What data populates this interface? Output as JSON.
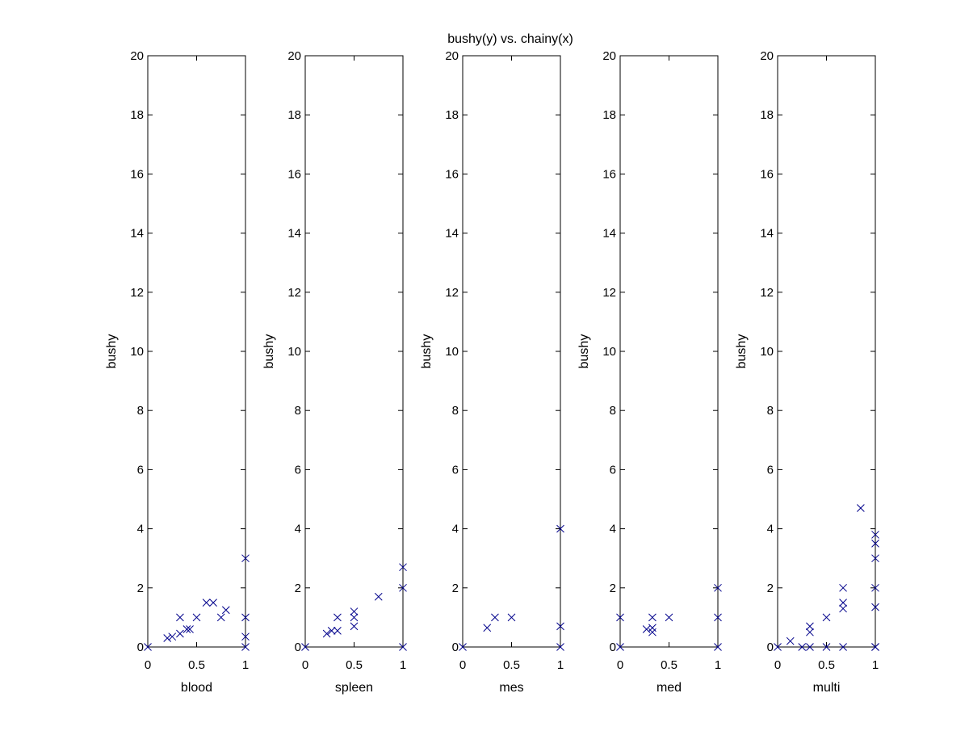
{
  "figure": {
    "title": "bushy(y) vs. chainy(x)",
    "background": "#ffffff",
    "marker_color": "#00008b"
  },
  "chart_data": [
    {
      "type": "scatter",
      "xlabel": "blood",
      "ylabel": "bushy",
      "xlim": [
        0,
        1
      ],
      "ylim": [
        0,
        20
      ],
      "xticks": [
        "0",
        "0.5",
        "1"
      ],
      "yticks": [
        "0",
        "2",
        "4",
        "6",
        "8",
        "10",
        "12",
        "14",
        "16",
        "18",
        "20"
      ],
      "marker": "x",
      "x": [
        0,
        0.2,
        0.25,
        0.33,
        0.33,
        0.4,
        0.43,
        0.5,
        0.6,
        0.67,
        0.75,
        0.8,
        1,
        1,
        1,
        1
      ],
      "y": [
        0,
        0.3,
        0.35,
        0.45,
        1.0,
        0.6,
        0.6,
        1.0,
        1.5,
        1.5,
        1.0,
        1.25,
        3.0,
        1.0,
        0.35,
        0
      ]
    },
    {
      "type": "scatter",
      "xlabel": "spleen",
      "ylabel": "bushy",
      "xlim": [
        0,
        1
      ],
      "ylim": [
        0,
        20
      ],
      "xticks": [
        "0",
        "0.5",
        "1"
      ],
      "yticks": [
        "0",
        "2",
        "4",
        "6",
        "8",
        "10",
        "12",
        "14",
        "16",
        "18",
        "20"
      ],
      "marker": "x",
      "x": [
        0,
        0.22,
        0.27,
        0.33,
        0.33,
        0.5,
        0.5,
        0.5,
        0.75,
        1,
        1,
        1
      ],
      "y": [
        0,
        0.45,
        0.55,
        0.55,
        1.0,
        0.7,
        1.0,
        1.2,
        1.7,
        2.7,
        2.0,
        0
      ],
      "__note": ""
    },
    {
      "type": "scatter",
      "xlabel": "mes",
      "ylabel": "bushy",
      "xlim": [
        0,
        1
      ],
      "ylim": [
        0,
        20
      ],
      "xticks": [
        "0",
        "0.5",
        "1"
      ],
      "yticks": [
        "0",
        "2",
        "4",
        "6",
        "8",
        "10",
        "12",
        "14",
        "16",
        "18",
        "20"
      ],
      "marker": "x",
      "x": [
        0,
        0.25,
        0.33,
        0.5,
        1,
        1,
        1
      ],
      "y": [
        0,
        0.65,
        1.0,
        1.0,
        4.0,
        0.7,
        0
      ]
    },
    {
      "type": "scatter",
      "xlabel": "med",
      "ylabel": "bushy",
      "xlim": [
        0,
        1
      ],
      "ylim": [
        0,
        20
      ],
      "xticks": [
        "0",
        "0.5",
        "1"
      ],
      "yticks": [
        "0",
        "2",
        "4",
        "6",
        "8",
        "10",
        "12",
        "14",
        "16",
        "18",
        "20"
      ],
      "marker": "x",
      "x": [
        0,
        0,
        0.27,
        0.33,
        0.33,
        0.33,
        0.5,
        1,
        1,
        1
      ],
      "y": [
        1.0,
        0,
        0.6,
        0.5,
        0.65,
        1.0,
        1.0,
        2.0,
        1.0,
        0
      ]
    },
    {
      "type": "scatter",
      "xlabel": "multi",
      "ylabel": "bushy",
      "xlim": [
        0,
        1
      ],
      "ylim": [
        0,
        20
      ],
      "xticks": [
        "0",
        "0.5",
        "1"
      ],
      "yticks": [
        "0",
        "2",
        "4",
        "6",
        "8",
        "10",
        "12",
        "14",
        "16",
        "18",
        "20"
      ],
      "marker": "x",
      "x": [
        0,
        0.13,
        0.25,
        0.33,
        0.33,
        0.33,
        0.5,
        0.5,
        0.67,
        0.67,
        0.67,
        0.67,
        0.85,
        1,
        1,
        1,
        1,
        1,
        1,
        1
      ],
      "y": [
        0,
        0.2,
        0,
        0,
        0.5,
        0.7,
        0,
        1.0,
        0,
        1.3,
        1.5,
        2.0,
        4.7,
        3.8,
        3.5,
        3.0,
        2.0,
        1.35,
        0,
        0
      ]
    }
  ]
}
